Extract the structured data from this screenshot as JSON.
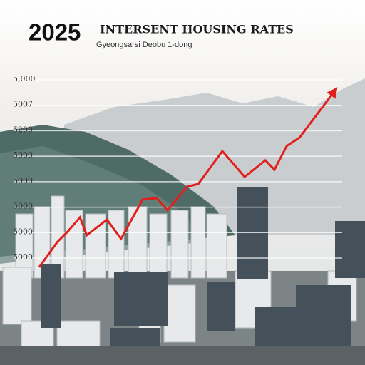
{
  "chart_data": {
    "type": "line",
    "title": "2025",
    "heading": "INTERSENT HOUSING RATES",
    "subtitle": "Gyeongsarsi Deobu 1-dong",
    "x": [
      3.4,
      9.1,
      12.5,
      16.4,
      18.6,
      25,
      29.5,
      36.4,
      40.9,
      44.3,
      50.5,
      54.1,
      61.8,
      68.9,
      75.5,
      78.4,
      82.3,
      86.4,
      97.7
    ],
    "series": [
      {
        "name": null,
        "color": "#e0201c",
        "values": [
          -0.36,
          0.62,
          1.04,
          1.6,
          0.9,
          1.51,
          0.76,
          2.3,
          2.35,
          1.88,
          2.8,
          2.91,
          4.2,
          3.19,
          3.84,
          3.47,
          4.4,
          4.73,
          6.58
        ]
      }
    ],
    "xlim": [
      0,
      100
    ],
    "ylim": [
      -1,
      7
    ],
    "yticks": [
      {
        "value": 0,
        "label": "5000"
      },
      {
        "value": 1,
        "label": "5000"
      },
      {
        "value": 2,
        "label": "5000"
      },
      {
        "value": 3,
        "label": "5000"
      },
      {
        "value": 4,
        "label": "5000"
      },
      {
        "value": 5,
        "label": "5200"
      },
      {
        "value": 6,
        "label": "5007"
      },
      {
        "value": 7,
        "label": "5,000"
      }
    ],
    "grid": true
  }
}
